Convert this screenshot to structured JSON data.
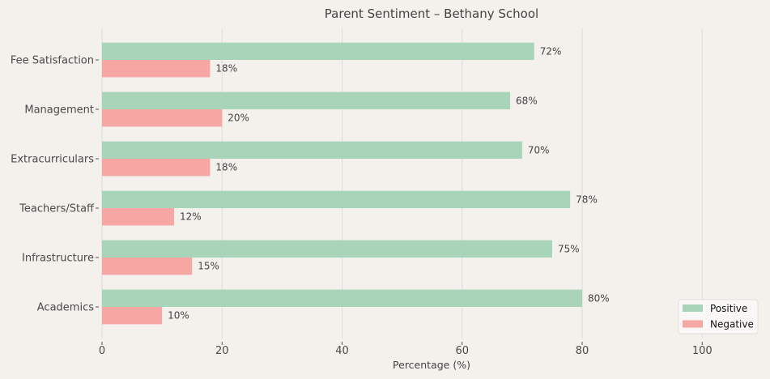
{
  "chart_data": {
    "type": "bar",
    "orientation": "horizontal",
    "title": "Parent Sentiment – Bethany School",
    "xlabel": "Percentage (%)",
    "ylabel": "",
    "xlim": [
      0,
      110
    ],
    "xticks": [
      0,
      20,
      40,
      60,
      80,
      100
    ],
    "grid": "vertical",
    "legend_position": "bottom-right",
    "categories": [
      "Academics",
      "Infrastructure",
      "Teachers/Staff",
      "Extracurriculars",
      "Management",
      "Fee Satisfaction"
    ],
    "series": [
      {
        "name": "Positive",
        "color": "#a8d5ba",
        "values": [
          80,
          75,
          78,
          70,
          68,
          72
        ],
        "labels": [
          "80%",
          "75%",
          "78%",
          "70%",
          "68%",
          "72%"
        ]
      },
      {
        "name": "Negative",
        "color": "#f6a6a3",
        "values": [
          10,
          15,
          12,
          18,
          20,
          18
        ],
        "labels": [
          "10%",
          "15%",
          "12%",
          "18%",
          "20%",
          "18%"
        ]
      }
    ]
  }
}
